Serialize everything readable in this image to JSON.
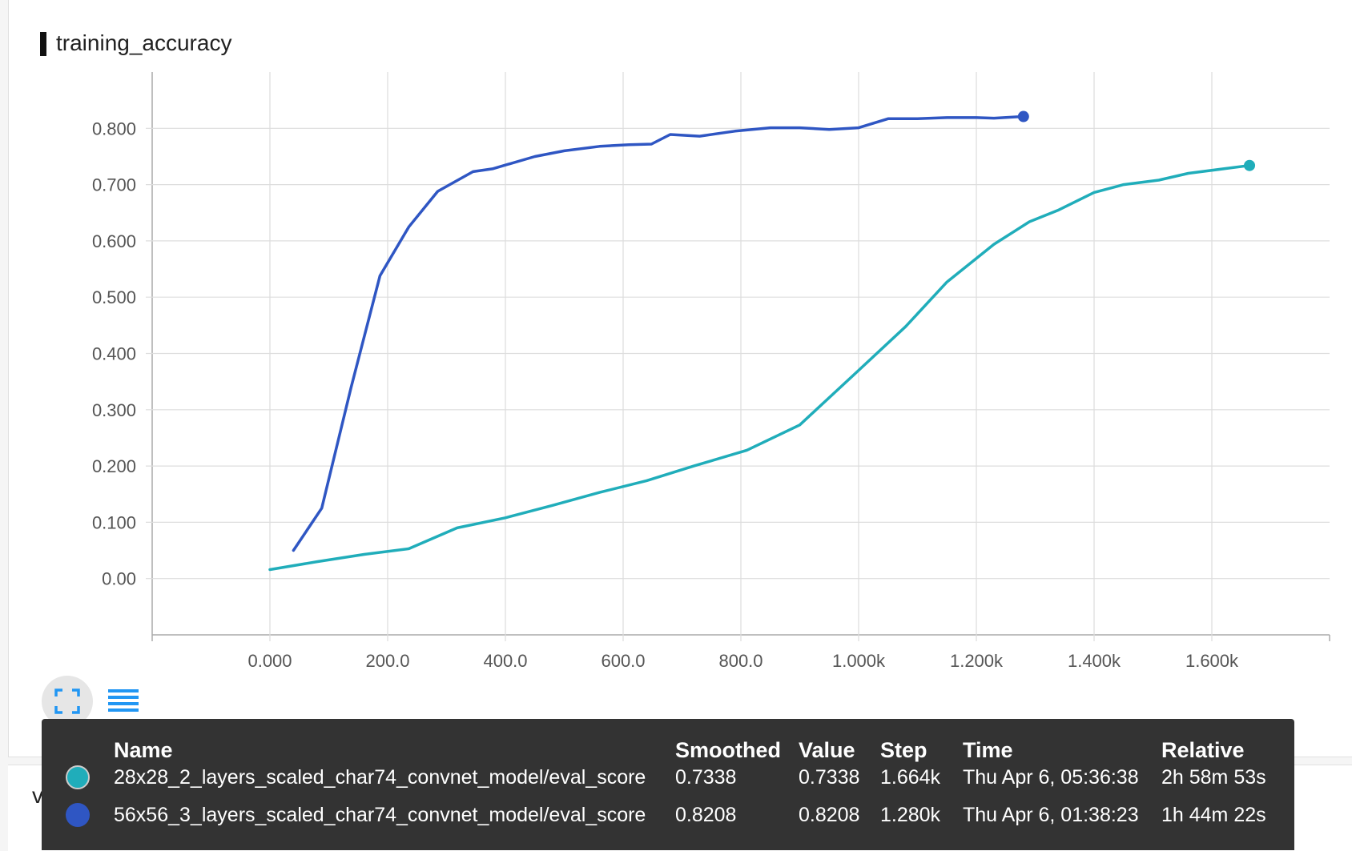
{
  "header": {
    "title": "training_accuracy"
  },
  "next_card": {
    "title": "validation_accuracy"
  },
  "colors": {
    "series_a": "#20adba",
    "series_b": "#2f56c3",
    "grid": "#dddddd",
    "axis": "#aaaaaa"
  },
  "controls": {
    "fullscreen_icon": "fullscreen-icon",
    "lines_icon": "lines-icon"
  },
  "chart_data": {
    "type": "line",
    "title": "training_accuracy",
    "xlabel": "",
    "ylabel": "",
    "xlim": [
      -200,
      1800
    ],
    "ylim": [
      -0.1,
      0.9
    ],
    "x_ticks": [
      0,
      200,
      400,
      600,
      800,
      1000,
      1200,
      1400,
      1600
    ],
    "x_tick_labels": [
      "0.000",
      "200.0",
      "400.0",
      "600.0",
      "800.0",
      "1.000k",
      "1.200k",
      "1.400k",
      "1.600k"
    ],
    "y_ticks": [
      0,
      0.1,
      0.2,
      0.3,
      0.4,
      0.5,
      0.6,
      0.7,
      0.8
    ],
    "y_tick_labels": [
      "0.00",
      "0.100",
      "0.200",
      "0.300",
      "0.400",
      "0.500",
      "0.600",
      "0.700",
      "0.800"
    ],
    "grid": true,
    "series": [
      {
        "name": "28x28_2_layers_scaled_char74_convnet_model/eval_score",
        "color": "#20adba",
        "points": [
          [
            0,
            0.016
          ],
          [
            80,
            0.03
          ],
          [
            160,
            0.043
          ],
          [
            236,
            0.053
          ],
          [
            318,
            0.09
          ],
          [
            400,
            0.108
          ],
          [
            480,
            0.13
          ],
          [
            560,
            0.153
          ],
          [
            640,
            0.174
          ],
          [
            720,
            0.2
          ],
          [
            810,
            0.228
          ],
          [
            900,
            0.273
          ],
          [
            1000,
            0.37
          ],
          [
            1080,
            0.448
          ],
          [
            1150,
            0.527
          ],
          [
            1230,
            0.594
          ],
          [
            1290,
            0.634
          ],
          [
            1340,
            0.655
          ],
          [
            1400,
            0.686
          ],
          [
            1450,
            0.7
          ],
          [
            1510,
            0.708
          ],
          [
            1560,
            0.72
          ],
          [
            1664,
            0.734
          ]
        ]
      },
      {
        "name": "56x56_3_layers_scaled_char74_convnet_model/eval_score",
        "color": "#2f56c3",
        "points": [
          [
            40,
            0.05
          ],
          [
            88,
            0.125
          ],
          [
            138,
            0.34
          ],
          [
            187,
            0.538
          ],
          [
            236,
            0.625
          ],
          [
            285,
            0.688
          ],
          [
            345,
            0.723
          ],
          [
            378,
            0.728
          ],
          [
            450,
            0.75
          ],
          [
            500,
            0.76
          ],
          [
            560,
            0.768
          ],
          [
            610,
            0.771
          ],
          [
            648,
            0.772
          ],
          [
            680,
            0.789
          ],
          [
            730,
            0.786
          ],
          [
            790,
            0.795
          ],
          [
            850,
            0.801
          ],
          [
            900,
            0.801
          ],
          [
            950,
            0.798
          ],
          [
            1000,
            0.801
          ],
          [
            1050,
            0.817
          ],
          [
            1100,
            0.817
          ],
          [
            1150,
            0.819
          ],
          [
            1200,
            0.819
          ],
          [
            1230,
            0.818
          ],
          [
            1280,
            0.821
          ]
        ]
      }
    ]
  },
  "tooltip": {
    "headers": {
      "name": "Name",
      "smoothed": "Smoothed",
      "value": "Value",
      "step": "Step",
      "time": "Time",
      "relative": "Relative"
    },
    "rows": [
      {
        "name": "28x28_2_layers_scaled_char74_convnet_model/eval_score",
        "smoothed": "0.7338",
        "value": "0.7338",
        "step": "1.664k",
        "time": "Thu Apr 6, 05:36:38",
        "relative": "2h 58m 53s",
        "color": "#20adba"
      },
      {
        "name": "56x56_3_layers_scaled_char74_convnet_model/eval_score",
        "smoothed": "0.8208",
        "value": "0.8208",
        "step": "1.280k",
        "time": "Thu Apr 6, 01:38:23",
        "relative": "1h 44m 22s",
        "color": "#2f56c3"
      }
    ]
  }
}
